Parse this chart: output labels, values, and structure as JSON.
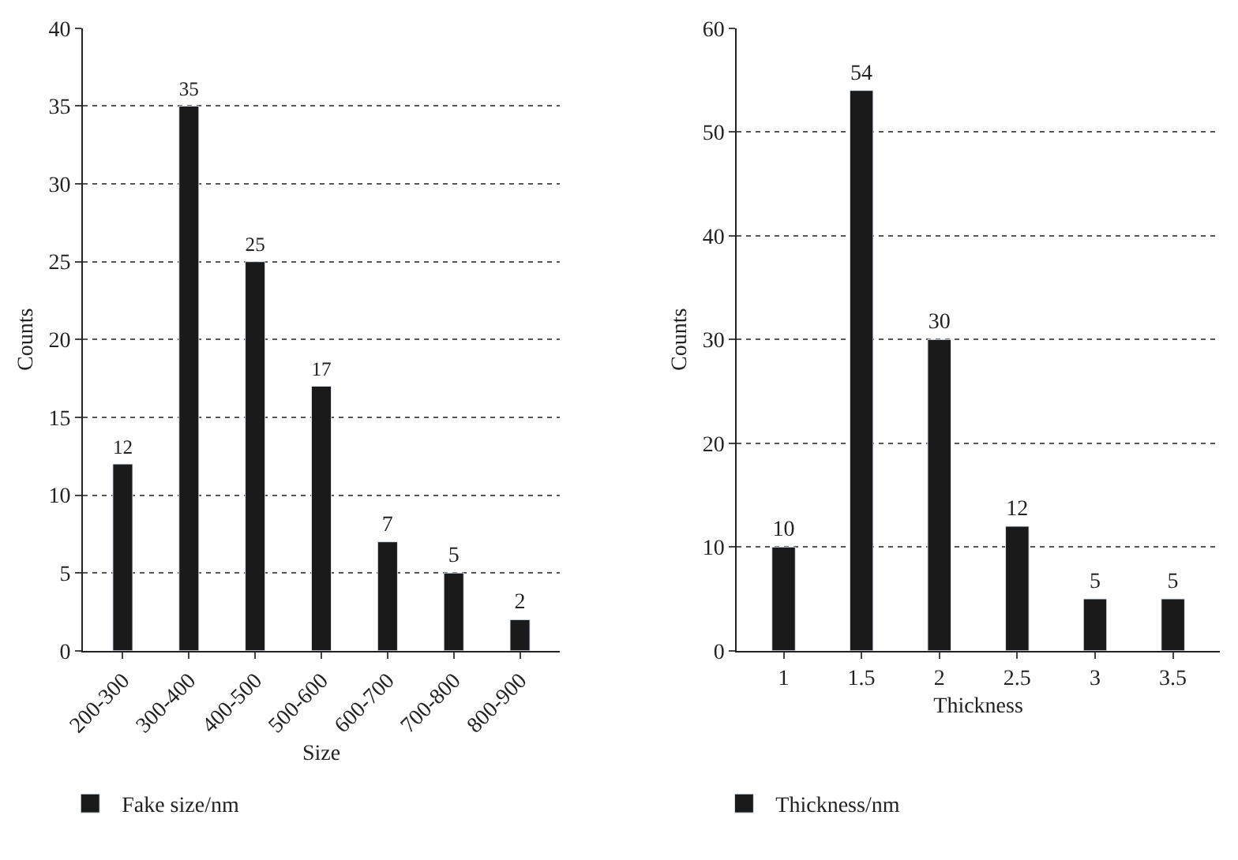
{
  "chart_data": [
    {
      "type": "bar",
      "xlabel": "Size",
      "ylabel": "Counts",
      "categories": [
        "200-300",
        "300-400",
        "400-500",
        "500-600",
        "600-700",
        "700-800",
        "800-900"
      ],
      "series": [
        {
          "name": "Fake size/nm",
          "color": "#1a1a1a",
          "values": [
            12,
            35,
            25,
            17,
            7,
            5,
            2
          ]
        }
      ],
      "ylim": [
        0,
        40
      ],
      "yticks": [
        0,
        5,
        10,
        15,
        20,
        25,
        30,
        35,
        40
      ],
      "grid": "y",
      "legend": "bottom left",
      "data_labels": true
    },
    {
      "type": "bar",
      "xlabel": "Thickness",
      "ylabel": "Counts",
      "categories": [
        "1",
        "1.5",
        "2",
        "2.5",
        "3",
        "3.5"
      ],
      "series": [
        {
          "name": "Thickness/nm",
          "color": "#1a1a1a",
          "values": [
            10,
            54,
            30,
            12,
            5,
            5
          ]
        }
      ],
      "ylim": [
        0,
        60
      ],
      "yticks": [
        0,
        10,
        20,
        30,
        40,
        50,
        60
      ],
      "grid": "y",
      "legend": "bottom left",
      "data_labels": true
    }
  ]
}
